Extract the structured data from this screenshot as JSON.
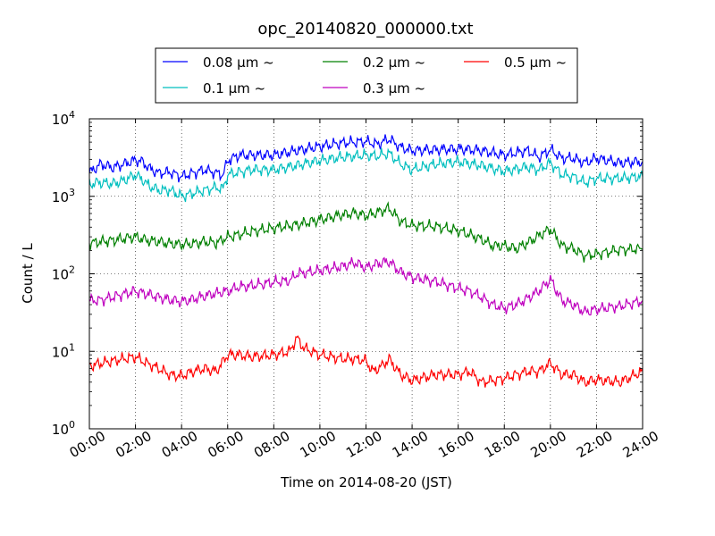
{
  "chart_data": {
    "type": "line",
    "title": "opc_20140820_000000.txt",
    "xlabel": "Time on 2014-08-20 (JST)",
    "ylabel": "Count / L",
    "x_unit": "hours",
    "xlim": [
      0,
      24
    ],
    "ylim": [
      1,
      10000
    ],
    "yscale": "log",
    "grid": true,
    "legend_position": "top-center",
    "x_ticks": [
      {
        "value": 0,
        "label": "00:00"
      },
      {
        "value": 2,
        "label": "02:00"
      },
      {
        "value": 4,
        "label": "04:00"
      },
      {
        "value": 6,
        "label": "06:00"
      },
      {
        "value": 8,
        "label": "08:00"
      },
      {
        "value": 10,
        "label": "10:00"
      },
      {
        "value": 12,
        "label": "12:00"
      },
      {
        "value": 14,
        "label": "14:00"
      },
      {
        "value": 16,
        "label": "16:00"
      },
      {
        "value": 18,
        "label": "18:00"
      },
      {
        "value": 20,
        "label": "20:00"
      },
      {
        "value": 22,
        "label": "22:00"
      },
      {
        "value": 24,
        "label": "24:00"
      }
    ],
    "y_ticks": [
      {
        "value": 1,
        "base": "10",
        "exp": "0"
      },
      {
        "value": 10,
        "base": "10",
        "exp": "1"
      },
      {
        "value": 100,
        "base": "10",
        "exp": "2"
      },
      {
        "value": 1000,
        "base": "10",
        "exp": "3"
      },
      {
        "value": 10000,
        "base": "10",
        "exp": "4"
      }
    ],
    "series": [
      {
        "name": "0.08 μm ~",
        "color": "#0000ff",
        "x": [
          0,
          0.25,
          0.5,
          1,
          1.5,
          2,
          2.3,
          2.6,
          3,
          3.5,
          4,
          4.5,
          5,
          5.5,
          5.8,
          6,
          6.5,
          7,
          8,
          9,
          10,
          11,
          12,
          12.5,
          13,
          13.5,
          14,
          15,
          16,
          17,
          18,
          19,
          19.5,
          20,
          20.5,
          21,
          21.5,
          22,
          23,
          24
        ],
        "y": [
          2000,
          2300,
          2600,
          2350,
          2600,
          2950,
          2800,
          2300,
          2000,
          2050,
          1800,
          2000,
          2200,
          2000,
          1900,
          2900,
          3400,
          3400,
          3400,
          3900,
          4400,
          4900,
          5100,
          4700,
          5500,
          4300,
          3900,
          4000,
          4100,
          3900,
          3400,
          3900,
          3200,
          4000,
          3100,
          3100,
          2700,
          3100,
          2700,
          2800
        ]
      },
      {
        "name": "0.1 μm ~",
        "color": "#00bfbf",
        "x": [
          0,
          0.25,
          0.5,
          1,
          1.5,
          2,
          2.3,
          2.6,
          3,
          3.5,
          4,
          4.5,
          5,
          5.5,
          5.8,
          6,
          6.5,
          7,
          8,
          9,
          10,
          11,
          12,
          12.5,
          13,
          13.5,
          14,
          15,
          16,
          17,
          18,
          19,
          19.5,
          20,
          20.5,
          21,
          21.5,
          22,
          23,
          24
        ],
        "y": [
          1400,
          1500,
          1500,
          1450,
          1600,
          1900,
          1650,
          1350,
          1200,
          1200,
          1000,
          1100,
          1200,
          1300,
          1250,
          1900,
          2050,
          2200,
          2200,
          2500,
          2900,
          3200,
          3400,
          3300,
          3600,
          2600,
          2200,
          2600,
          2800,
          2500,
          2100,
          2400,
          2200,
          2700,
          1900,
          1800,
          1500,
          1700,
          1700,
          1800
        ]
      },
      {
        "name": "0.2 μm ~",
        "color": "#008000",
        "x": [
          0,
          0.5,
          1,
          1.5,
          2,
          2.5,
          3,
          3.5,
          4,
          4.5,
          5,
          5.5,
          6,
          6.5,
          7,
          8,
          9,
          10,
          11,
          11.5,
          12,
          12.5,
          13,
          13.5,
          14,
          15,
          16,
          16.5,
          17,
          17.5,
          18,
          18.5,
          19,
          19.5,
          20,
          20.5,
          21,
          21.5,
          22,
          23,
          24
        ],
        "y": [
          250,
          260,
          270,
          285,
          300,
          270,
          260,
          245,
          240,
          245,
          260,
          250,
          300,
          320,
          350,
          390,
          430,
          500,
          580,
          610,
          560,
          620,
          700,
          480,
          420,
          410,
          360,
          320,
          280,
          230,
          230,
          210,
          250,
          310,
          380,
          230,
          210,
          170,
          180,
          205,
          210
        ]
      },
      {
        "name": "0.3 μm ~",
        "color": "#bf00bf",
        "x": [
          0,
          0.5,
          1,
          1.5,
          2,
          2.5,
          3,
          3.5,
          4,
          4.5,
          5,
          5.5,
          6,
          6.5,
          7,
          8,
          8.7,
          9,
          10,
          11,
          11.5,
          12,
          12.5,
          13,
          13.5,
          14,
          15,
          16,
          16.5,
          17,
          17.5,
          18,
          18.5,
          19,
          19.5,
          20,
          20.5,
          21,
          21.5,
          22,
          23,
          24
        ],
        "y": [
          45,
          46,
          50,
          55,
          60,
          55,
          50,
          46,
          44,
          47,
          52,
          56,
          60,
          68,
          70,
          78,
          82,
          100,
          110,
          125,
          140,
          120,
          135,
          145,
          105,
          90,
          80,
          65,
          60,
          50,
          40,
          36,
          40,
          48,
          60,
          85,
          45,
          40,
          32,
          35,
          38,
          45
        ]
      },
      {
        "name": "0.5 μm ~",
        "color": "#ff0000",
        "x": [
          0,
          0.5,
          1,
          1.5,
          2,
          2.5,
          3,
          3.5,
          4,
          4.5,
          5,
          5.5,
          6,
          6.5,
          7,
          8,
          8.7,
          9,
          9.3,
          10,
          11,
          11.5,
          12,
          12.3,
          12.7,
          13,
          13.5,
          14,
          15,
          16,
          16.5,
          17,
          17.5,
          18,
          18.5,
          19,
          19.5,
          20,
          20.5,
          21,
          21.5,
          22,
          23,
          24
        ],
        "y": [
          6.5,
          7,
          7.5,
          8,
          8.5,
          7,
          6,
          5,
          4.8,
          5.5,
          6,
          5.5,
          9,
          9,
          8.5,
          9,
          10,
          15,
          11,
          9,
          8,
          8,
          7.5,
          5.5,
          6.5,
          8,
          5,
          4.2,
          5,
          5,
          5.5,
          4,
          4.2,
          4.5,
          5,
          5.5,
          5.5,
          7,
          5,
          5,
          4,
          4.3,
          4,
          5.5
        ]
      }
    ]
  }
}
